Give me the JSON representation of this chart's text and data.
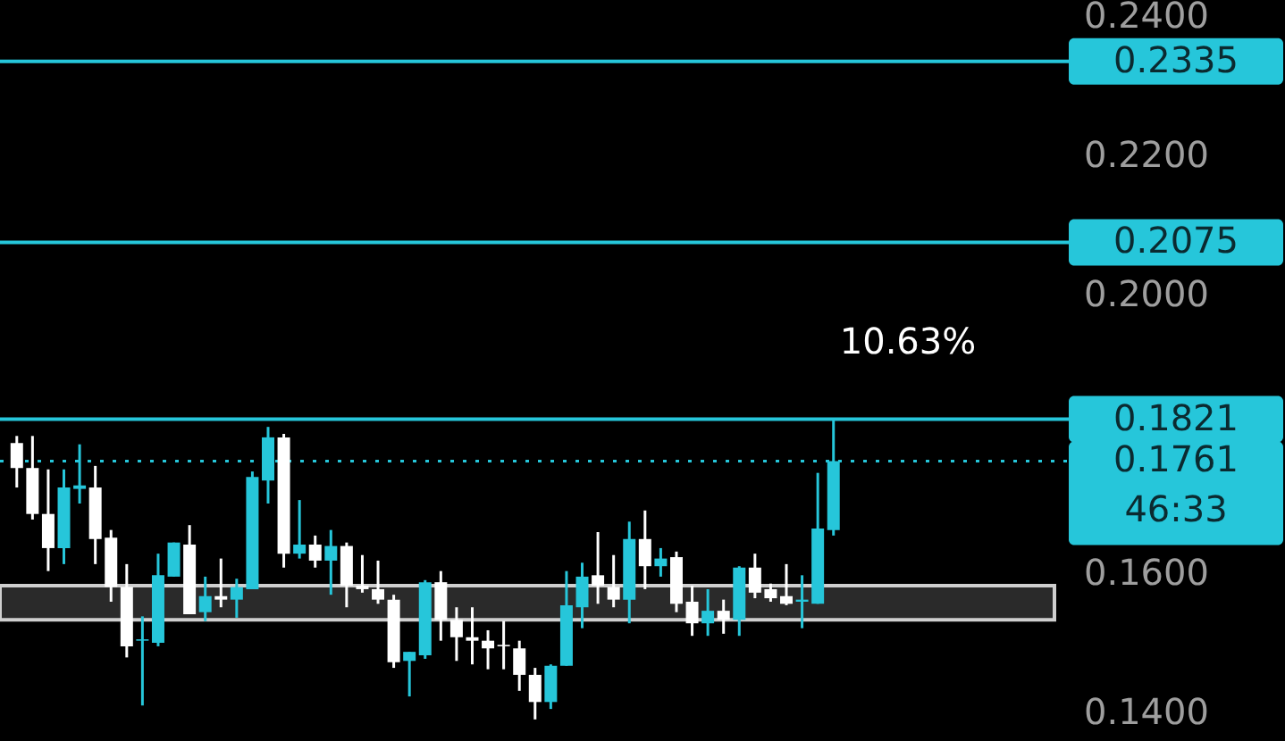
{
  "chart_data": {
    "type": "candlestick",
    "categories": [
      null,
      null,
      null,
      null,
      null,
      null,
      null,
      null,
      null,
      null,
      null,
      null,
      null,
      null,
      null,
      null,
      null,
      null,
      null,
      null,
      null,
      null,
      null,
      null,
      null,
      null,
      null,
      null,
      null,
      null,
      null,
      null,
      null,
      null,
      null,
      null,
      null,
      null,
      null,
      null,
      null,
      null,
      null,
      null,
      null,
      null,
      null,
      null,
      null,
      null,
      null,
      null,
      null,
      null,
      null,
      null,
      null,
      null,
      null,
      null,
      null,
      null,
      null,
      null,
      null,
      null
    ],
    "ohlc": [
      [
        0.1787,
        0.1797,
        0.1723,
        0.1751
      ],
      [
        0.1751,
        0.1797,
        0.1677,
        0.1685
      ],
      [
        0.1685,
        0.1749,
        0.1603,
        0.1636
      ],
      [
        0.1636,
        0.1749,
        0.1613,
        0.1723
      ],
      [
        0.1721,
        0.1785,
        0.17,
        0.1726
      ],
      [
        0.1723,
        0.1754,
        0.1613,
        0.1649
      ],
      [
        0.1651,
        0.1662,
        0.1559,
        0.158
      ],
      [
        0.158,
        0.1613,
        0.1479,
        0.1495
      ],
      [
        0.1503,
        0.1538,
        0.141,
        0.1505
      ],
      [
        0.15,
        0.1628,
        0.1495,
        0.1597
      ],
      [
        0.1595,
        0.1644,
        0.1595,
        0.1644
      ],
      [
        0.1641,
        0.1669,
        0.1541,
        0.1541
      ],
      [
        0.1544,
        0.1595,
        0.1531,
        0.1567
      ],
      [
        0.1567,
        0.1621,
        0.1551,
        0.1562
      ],
      [
        0.1562,
        0.1592,
        0.1536,
        0.158
      ],
      [
        0.1577,
        0.1746,
        0.1577,
        0.1738
      ],
      [
        0.1733,
        0.181,
        0.17,
        0.1795
      ],
      [
        0.1795,
        0.18,
        0.1608,
        0.1628
      ],
      [
        0.1628,
        0.1705,
        0.1621,
        0.1641
      ],
      [
        0.1641,
        0.1654,
        0.1608,
        0.1618
      ],
      [
        0.1618,
        0.1662,
        0.1569,
        0.1639
      ],
      [
        0.1639,
        0.1644,
        0.1551,
        0.1582
      ],
      [
        0.1582,
        0.1626,
        0.1572,
        0.1577
      ],
      [
        0.1577,
        0.1618,
        0.1556,
        0.1562
      ],
      [
        0.1562,
        0.1569,
        0.1464,
        0.1472
      ],
      [
        0.1474,
        0.1487,
        0.1423,
        0.1487
      ],
      [
        0.1482,
        0.159,
        0.1477,
        0.1587
      ],
      [
        0.1587,
        0.1603,
        0.1503,
        0.1533
      ],
      [
        0.1533,
        0.1551,
        0.1474,
        0.1508
      ],
      [
        0.1508,
        0.1551,
        0.1469,
        0.1503
      ],
      [
        0.1503,
        0.1518,
        0.1462,
        0.1492
      ],
      [
        0.1497,
        0.1531,
        0.1462,
        0.1495
      ],
      [
        0.1492,
        0.1503,
        0.1431,
        0.1454
      ],
      [
        0.1454,
        0.1464,
        0.139,
        0.1415
      ],
      [
        0.1415,
        0.1469,
        0.1405,
        0.1467
      ],
      [
        0.1467,
        0.1603,
        0.1467,
        0.1554
      ],
      [
        0.1551,
        0.1615,
        0.1521,
        0.1595
      ],
      [
        0.1597,
        0.1659,
        0.1556,
        0.1582
      ],
      [
        0.158,
        0.1626,
        0.1551,
        0.1562
      ],
      [
        0.1562,
        0.1674,
        0.1528,
        0.1649
      ],
      [
        0.1649,
        0.169,
        0.1577,
        0.161
      ],
      [
        0.161,
        0.1636,
        0.1595,
        0.1621
      ],
      [
        0.1623,
        0.1631,
        0.1544,
        0.1556
      ],
      [
        0.1559,
        0.1582,
        0.151,
        0.1528
      ],
      [
        0.1528,
        0.1577,
        0.151,
        0.1546
      ],
      [
        0.1546,
        0.1562,
        0.1513,
        0.1533
      ],
      [
        0.1533,
        0.161,
        0.151,
        0.1608
      ],
      [
        0.1608,
        0.1628,
        0.1564,
        0.1572
      ],
      [
        0.1577,
        0.1585,
        0.1559,
        0.1564
      ],
      [
        0.1567,
        0.1613,
        0.1554,
        0.1556
      ],
      [
        0.1559,
        0.1597,
        0.1521,
        0.1562
      ],
      [
        0.1556,
        0.1744,
        0.1556,
        0.1664
      ],
      [
        0.1662,
        0.1821,
        0.1654,
        0.1761
      ],
      null,
      null,
      null,
      null,
      null,
      null,
      null,
      null,
      null,
      null,
      null,
      null,
      null
    ],
    "colors": [
      "#ffffff",
      "#ffffff",
      "#ffffff",
      "#26c6da",
      "#26c6da",
      "#ffffff",
      "#ffffff",
      "#ffffff",
      "#26c6da",
      "#26c6da",
      "#26c6da",
      "#ffffff",
      "#26c6da",
      "#ffffff",
      "#26c6da",
      "#26c6da",
      "#26c6da",
      "#ffffff",
      "#26c6da",
      "#ffffff",
      "#26c6da",
      "#ffffff",
      "#ffffff",
      "#ffffff",
      "#ffffff",
      "#26c6da",
      "#26c6da",
      "#ffffff",
      "#ffffff",
      "#ffffff",
      "#ffffff",
      "#ffffff",
      "#ffffff",
      "#ffffff",
      "#26c6da",
      "#26c6da",
      "#26c6da",
      "#ffffff",
      "#ffffff",
      "#26c6da",
      "#ffffff",
      "#26c6da",
      "#ffffff",
      "#ffffff",
      "#26c6da",
      "#ffffff",
      "#26c6da",
      "#ffffff",
      "#ffffff",
      "#ffffff",
      "#26c6da",
      "#26c6da",
      "#26c6da",
      null,
      null,
      null,
      null,
      null,
      null,
      null,
      null,
      null,
      null,
      null,
      null,
      null
    ],
    "ylim": [
      0.1359,
      0.2423
    ],
    "yticks": [
      {
        "value": 0.14,
        "label": "0.1400"
      },
      {
        "value": 0.16,
        "label": "0.1600"
      },
      {
        "value": 0.2,
        "label": "0.2000"
      },
      {
        "value": 0.22,
        "label": "0.2200"
      },
      {
        "value": 0.24,
        "label": "0.2400"
      }
    ],
    "tick_labels": "y",
    "grid": false,
    "ref_lines": [
      {
        "axis": "y",
        "value": 0.2335,
        "label": "0.2335",
        "color": "#26c6da",
        "line_style": "solid"
      },
      {
        "axis": "y",
        "value": 0.2075,
        "label": "0.2075",
        "color": "#26c6da",
        "line_style": "solid"
      },
      {
        "axis": "y",
        "value": 0.1821,
        "label": "0.1821",
        "color": "#26c6da",
        "line_style": "solid"
      },
      {
        "axis": "y",
        "value": 0.1761,
        "label": "0.1761",
        "color": "#26c6da",
        "line_style": "dotted"
      }
    ],
    "bands": [
      {
        "axis": "y",
        "from": 0.1533,
        "to": 0.1582,
        "color": "#2a2a2a"
      }
    ],
    "annotations": [
      "10.63%",
      "46:33"
    ]
  }
}
